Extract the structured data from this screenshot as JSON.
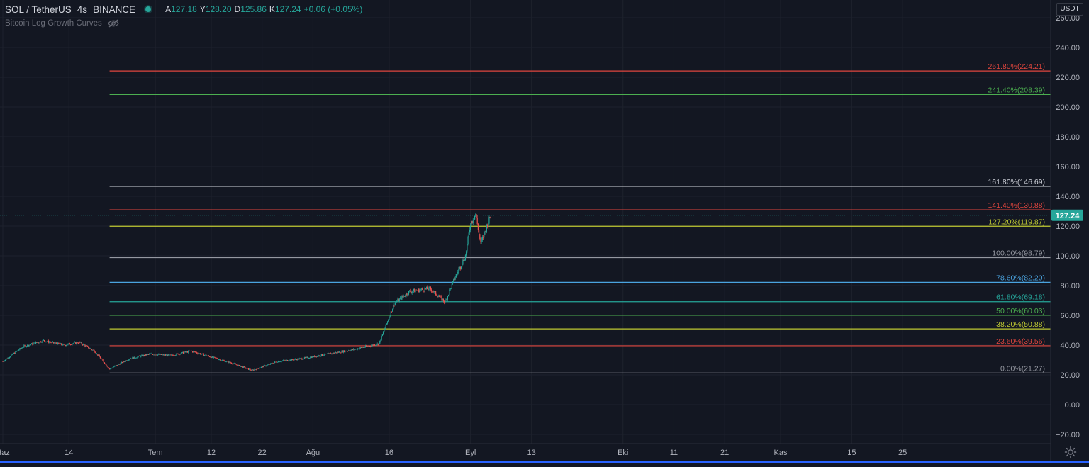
{
  "header": {
    "symbol": "SOL / TetherUS",
    "interval": "4s",
    "exchange": "BINANCE",
    "ohlc": [
      {
        "key": "A",
        "value": "127.18"
      },
      {
        "key": "Y",
        "value": "128.20"
      },
      {
        "key": "D",
        "value": "125.86"
      },
      {
        "key": "K",
        "value": "127.24"
      }
    ],
    "change": "+0.06 (+0.05%)",
    "indicator": "Bitcoin Log Growth Curves",
    "currency": "USDT"
  },
  "colors": {
    "background": "#131722",
    "grid": "#1e222d",
    "up": "#26a69a",
    "down": "#ef5350",
    "axis_text": "#b2b5be",
    "price_badge": "#26a69a"
  },
  "chart_data": {
    "type": "candlestick",
    "instrument": "SOL / TetherUS",
    "interval": "4s",
    "ylim": [
      -25,
      265
    ],
    "y_ticks": [
      -20,
      0,
      20,
      40,
      60,
      80,
      100,
      120,
      140,
      160,
      180,
      200,
      220,
      240,
      260
    ],
    "y_tick_labels": [
      "−20.00",
      "0.00",
      "20.00",
      "40.00",
      "60.00",
      "80.00",
      "100.00",
      "120.00",
      "140.00",
      "160.00",
      "180.00",
      "200.00",
      "220.00",
      "240.00",
      "260.00"
    ],
    "x_range_days": [
      "2021-06-01",
      "2021-12-04"
    ],
    "x_ticks": [
      {
        "label": "Haz",
        "date": "2021-06-01"
      },
      {
        "label": "14",
        "date": "2021-06-14"
      },
      {
        "label": "Tem",
        "date": "2021-07-01"
      },
      {
        "label": "12",
        "date": "2021-07-12"
      },
      {
        "label": "22",
        "date": "2021-07-22"
      },
      {
        "label": "Ağu",
        "date": "2021-08-01"
      },
      {
        "label": "16",
        "date": "2021-08-16"
      },
      {
        "label": "Eyl",
        "date": "2021-09-01"
      },
      {
        "label": "13",
        "date": "2021-09-13"
      },
      {
        "label": "Eki",
        "date": "2021-10-01"
      },
      {
        "label": "11",
        "date": "2021-10-11"
      },
      {
        "label": "21",
        "date": "2021-10-21"
      },
      {
        "label": "Kas",
        "date": "2021-11-01"
      },
      {
        "label": "15",
        "date": "2021-11-15"
      },
      {
        "label": "25",
        "date": "2021-11-25"
      }
    ],
    "price_path": [
      {
        "date": "2021-06-01",
        "close": 29
      },
      {
        "date": "2021-06-05",
        "close": 39
      },
      {
        "date": "2021-06-09",
        "close": 43
      },
      {
        "date": "2021-06-13",
        "close": 40
      },
      {
        "date": "2021-06-16",
        "close": 42
      },
      {
        "date": "2021-06-19",
        "close": 36
      },
      {
        "date": "2021-06-22",
        "close": 24
      },
      {
        "date": "2021-06-26",
        "close": 31
      },
      {
        "date": "2021-06-30",
        "close": 34
      },
      {
        "date": "2021-07-04",
        "close": 33
      },
      {
        "date": "2021-07-08",
        "close": 36
      },
      {
        "date": "2021-07-12",
        "close": 32
      },
      {
        "date": "2021-07-16",
        "close": 28
      },
      {
        "date": "2021-07-20",
        "close": 23
      },
      {
        "date": "2021-07-25",
        "close": 29
      },
      {
        "date": "2021-07-30",
        "close": 31
      },
      {
        "date": "2021-08-04",
        "close": 34
      },
      {
        "date": "2021-08-09",
        "close": 37
      },
      {
        "date": "2021-08-14",
        "close": 41
      },
      {
        "date": "2021-08-17",
        "close": 68
      },
      {
        "date": "2021-08-20",
        "close": 76
      },
      {
        "date": "2021-08-24",
        "close": 78
      },
      {
        "date": "2021-08-27",
        "close": 69
      },
      {
        "date": "2021-08-29",
        "close": 86
      },
      {
        "date": "2021-08-31",
        "close": 100
      },
      {
        "date": "2021-09-01",
        "close": 122
      },
      {
        "date": "2021-09-02",
        "close": 128
      },
      {
        "date": "2021-09-03",
        "close": 108
      },
      {
        "date": "2021-09-04",
        "close": 118
      },
      {
        "date": "2021-09-05",
        "close": 127.24
      }
    ],
    "last_price": 127.24,
    "last_price_label": "127.24",
    "fib_start_date": "2021-06-22",
    "fib_levels": [
      {
        "label": "261.80%(224.21)",
        "price": 224.21,
        "color": "#e0463e"
      },
      {
        "label": "241.40%(208.39)",
        "price": 208.39,
        "color": "#4caf50"
      },
      {
        "label": "161.80%(146.69)",
        "price": 146.69,
        "color": "#d1d4dc"
      },
      {
        "label": "141.40%(130.88)",
        "price": 130.88,
        "color": "#e0463e"
      },
      {
        "label": "127.20%(119.87)",
        "price": 119.87,
        "color": "#c0ca33"
      },
      {
        "label": "100.00%(98.79)",
        "price": 98.79,
        "color": "#9598a1"
      },
      {
        "label": "78.60%(82.20)",
        "price": 82.2,
        "color": "#4aa3df"
      },
      {
        "label": "61.80%(69.18)",
        "price": 69.18,
        "color": "#26a69a"
      },
      {
        "label": "50.00%(60.03)",
        "price": 60.03,
        "color": "#4caf50"
      },
      {
        "label": "38.20%(50.88)",
        "price": 50.88,
        "color": "#c0ca33"
      },
      {
        "label": "23.60%(39.56)",
        "price": 39.56,
        "color": "#e0463e"
      },
      {
        "label": "0.00%(21.27)",
        "price": 21.27,
        "color": "#9598a1"
      }
    ]
  }
}
